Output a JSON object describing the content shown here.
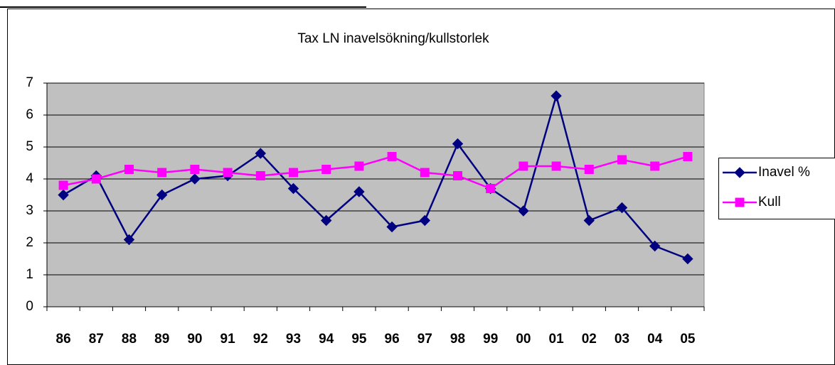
{
  "chart_data": {
    "type": "line",
    "title": "Tax LN inavelsökning/kullstorlek",
    "categories": [
      "86",
      "87",
      "88",
      "89",
      "90",
      "91",
      "92",
      "93",
      "94",
      "95",
      "96",
      "97",
      "98",
      "99",
      "00",
      "01",
      "02",
      "03",
      "04",
      "05"
    ],
    "series": [
      {
        "name": "Inavel %",
        "color": "#000080",
        "marker": "diamond",
        "values": [
          3.5,
          4.1,
          2.1,
          3.5,
          4.0,
          4.1,
          4.8,
          3.7,
          2.7,
          3.6,
          2.5,
          2.7,
          5.1,
          3.7,
          3.0,
          6.6,
          2.7,
          3.1,
          1.9,
          1.5
        ]
      },
      {
        "name": "Kull",
        "color": "#ff00ff",
        "marker": "square",
        "values": [
          3.8,
          4.0,
          4.3,
          4.2,
          4.3,
          4.2,
          4.1,
          4.2,
          4.3,
          4.4,
          4.7,
          4.2,
          4.1,
          3.7,
          4.4,
          4.4,
          4.3,
          4.6,
          4.4,
          4.7
        ]
      }
    ],
    "ylim": [
      0,
      7
    ],
    "yticks": [
      0,
      1,
      2,
      3,
      4,
      5,
      6,
      7
    ],
    "grid": true,
    "legend": "right"
  }
}
